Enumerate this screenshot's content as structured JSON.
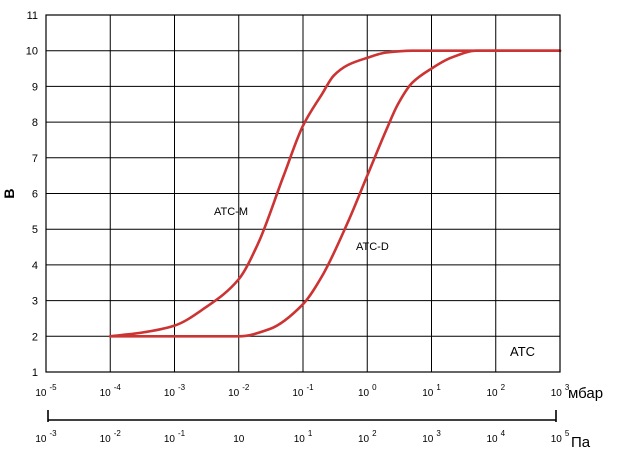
{
  "chart_data": {
    "type": "line",
    "title": "",
    "ylabel": "В",
    "xlabel_primary": "мбар",
    "xlabel_secondary": "Па",
    "x_scale": "log",
    "xlim": [
      1e-05,
      1000
    ],
    "ylim": [
      1,
      11
    ],
    "yticks": [
      "1",
      "2",
      "3",
      "4",
      "5",
      "6",
      "7",
      "8",
      "9",
      "10",
      "11"
    ],
    "xticks_mbar": [
      {
        "base": "10",
        "exp": "-5"
      },
      {
        "base": "10",
        "exp": "-4"
      },
      {
        "base": "10",
        "exp": "-3"
      },
      {
        "base": "10",
        "exp": "-2"
      },
      {
        "base": "10",
        "exp": "-1"
      },
      {
        "base": "10",
        "exp": "0"
      },
      {
        "base": "10",
        "exp": "1"
      },
      {
        "base": "10",
        "exp": "2"
      },
      {
        "base": "10",
        "exp": "3"
      }
    ],
    "xticks_pa": [
      {
        "base": "10",
        "exp": "-3"
      },
      {
        "base": "10",
        "exp": "-2"
      },
      {
        "base": "10",
        "exp": "-1"
      },
      {
        "base": "10",
        "exp": ""
      },
      {
        "base": "10",
        "exp": "1"
      },
      {
        "base": "10",
        "exp": "2"
      },
      {
        "base": "10",
        "exp": "3"
      },
      {
        "base": "10",
        "exp": "4"
      },
      {
        "base": "10",
        "exp": "5"
      }
    ],
    "grid": true,
    "series": [
      {
        "name": "ATC-M",
        "color": "#cc3333",
        "x": [
          0.0001,
          0.0003,
          0.001,
          0.003,
          0.01,
          0.02,
          0.05,
          0.1,
          0.2,
          0.3,
          0.5,
          1,
          2,
          5,
          10,
          100,
          1000
        ],
        "y": [
          2.0,
          2.1,
          2.3,
          2.8,
          3.6,
          4.6,
          6.5,
          7.9,
          8.8,
          9.3,
          9.6,
          9.8,
          9.95,
          10.0,
          10.0,
          10.0,
          10.0
        ]
      },
      {
        "name": "ATC-D",
        "color": "#cc3333",
        "x": [
          0.0001,
          0.001,
          0.01,
          0.03,
          0.1,
          0.2,
          0.5,
          1,
          2,
          3,
          5,
          10,
          20,
          50,
          100,
          1000
        ],
        "y": [
          2.0,
          2.0,
          2.0,
          2.2,
          2.9,
          3.7,
          5.2,
          6.5,
          7.8,
          8.5,
          9.1,
          9.5,
          9.8,
          10.0,
          10.0,
          10.0
        ]
      }
    ],
    "annotations": [
      "ATC-M",
      "ATC-D",
      "ATC"
    ]
  }
}
